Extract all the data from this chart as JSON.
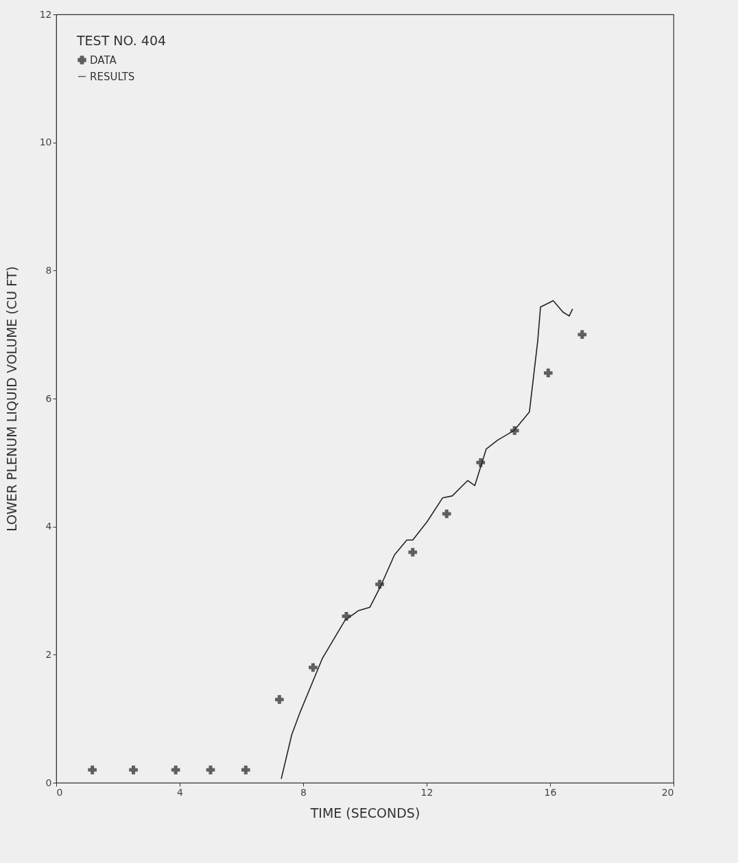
{
  "chart_data": {
    "type": "line",
    "xlabel": "TIME (SECONDS)",
    "ylabel": "LOWER PLENUM LIQUID VOLUME (CU FT)",
    "legend_title": "TEST NO. 404",
    "legend": "top left",
    "xlim": [
      0,
      20
    ],
    "xticks": [
      0,
      4,
      8,
      12,
      16,
      20
    ],
    "ylim": [
      0,
      12
    ],
    "yticks": [
      0,
      2,
      4,
      6,
      8,
      10,
      12
    ],
    "grid": false,
    "series": [
      {
        "name": "DATA",
        "type": "scatter",
        "marker": "cross",
        "color": "#222222",
        "x": [
          1.17,
          2.5,
          3.87,
          5.0,
          6.14,
          7.23,
          8.32,
          9.4,
          10.48,
          11.55,
          12.65,
          13.75,
          14.85,
          15.94,
          17.04
        ],
        "values": [
          0.2,
          0.2,
          0.2,
          0.2,
          0.2,
          1.3,
          1.8,
          2.6,
          3.1,
          3.6,
          4.2,
          5.0,
          5.5,
          6.4,
          7.0
        ]
      },
      {
        "name": "RESULTS",
        "type": "line",
        "marker": "none",
        "line_style": "solid",
        "color": "#222222",
        "x": [
          7.29,
          7.63,
          7.9,
          8.62,
          9.36,
          9.8,
          10.16,
          10.52,
          10.96,
          11.36,
          11.55,
          12.02,
          12.52,
          12.83,
          13.33,
          13.56,
          13.93,
          14.3,
          14.83,
          15.33,
          15.6,
          15.69,
          15.94,
          16.1,
          16.42,
          16.62,
          16.73
        ],
        "values": [
          0.06,
          0.75,
          1.1,
          1.94,
          2.54,
          2.69,
          2.74,
          3.08,
          3.56,
          3.79,
          3.79,
          4.08,
          4.45,
          4.48,
          4.72,
          4.64,
          5.21,
          5.35,
          5.5,
          5.79,
          6.9,
          7.43,
          7.49,
          7.53,
          7.35,
          7.29,
          7.4
        ]
      }
    ]
  }
}
